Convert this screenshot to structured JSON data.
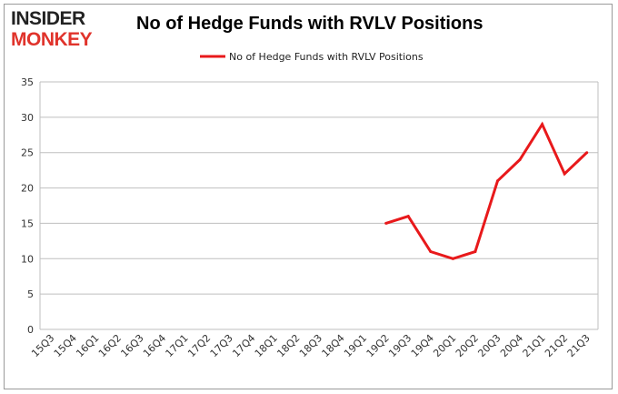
{
  "logo": {
    "line1": "INSIDER",
    "line2": "MONKEY"
  },
  "colors": {
    "series": "#e8191b",
    "grid": "#bfbfbf",
    "logo_red": "#e0332b"
  },
  "chart_data": {
    "type": "line",
    "title": "No of Hedge Funds with RVLV Positions",
    "xlabel": "",
    "ylabel": "",
    "ylim": [
      0,
      35
    ],
    "yticks": [
      0,
      5,
      10,
      15,
      20,
      25,
      30,
      35
    ],
    "grid": true,
    "legend_position": "top-center",
    "categories": [
      "15Q3",
      "15Q4",
      "16Q1",
      "16Q2",
      "16Q3",
      "16Q4",
      "17Q1",
      "17Q2",
      "17Q3",
      "17Q4",
      "18Q1",
      "18Q2",
      "18Q3",
      "18Q4",
      "19Q1",
      "19Q2",
      "19Q3",
      "19Q4",
      "20Q1",
      "20Q2",
      "20Q3",
      "20Q4",
      "21Q1",
      "21Q2",
      "21Q3"
    ],
    "series": [
      {
        "name": "No of Hedge Funds with RVLV Positions",
        "values": [
          null,
          null,
          null,
          null,
          null,
          null,
          null,
          null,
          null,
          null,
          null,
          null,
          null,
          null,
          null,
          15,
          16,
          11,
          10,
          11,
          21,
          24,
          29,
          22,
          25
        ]
      }
    ]
  }
}
